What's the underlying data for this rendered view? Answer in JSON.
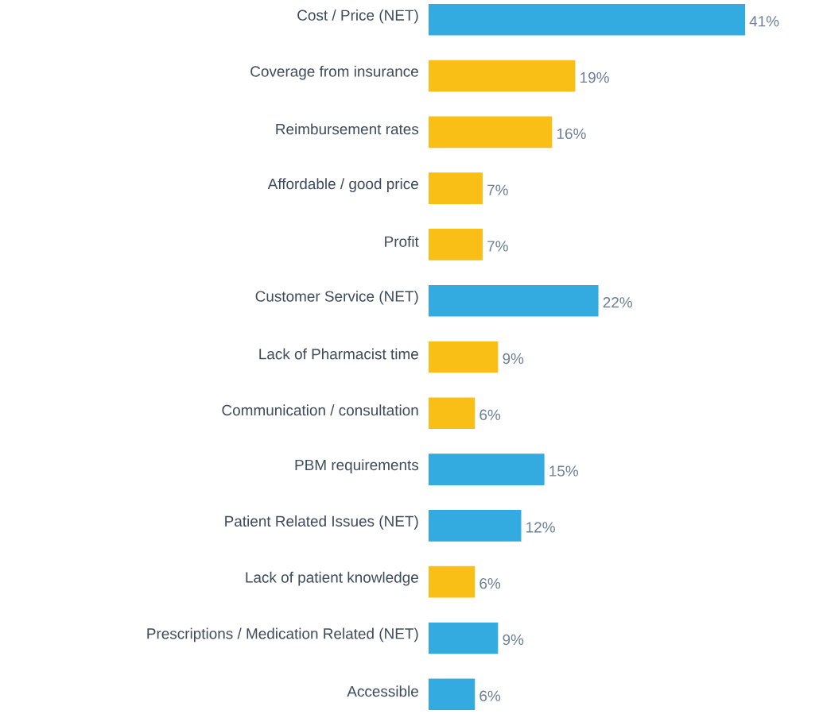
{
  "chart_data": {
    "type": "bar",
    "orientation": "horizontal",
    "categories": [
      "Cost / Price (NET)",
      "Coverage from insurance",
      "Reimbursement rates",
      "Affordable / good price",
      "Profit",
      "Customer Service (NET)",
      "Lack of Pharmacist time",
      "Communication / consultation",
      "PBM requirements",
      "Patient Related Issues (NET)",
      "Lack of patient knowledge",
      "Prescriptions / Medication Related (NET)",
      "Accessible"
    ],
    "values": [
      41,
      19,
      16,
      7,
      7,
      22,
      9,
      6,
      15,
      12,
      6,
      9,
      6
    ],
    "colors": [
      "#33abe1",
      "#f9bf16",
      "#f9bf16",
      "#f9bf16",
      "#f9bf16",
      "#33abe1",
      "#f9bf16",
      "#f9bf16",
      "#33abe1",
      "#33abe1",
      "#f9bf16",
      "#33abe1",
      "#33abe1"
    ],
    "value_labels": [
      "41%",
      "19%",
      "16%",
      "7%",
      "7%",
      "22%",
      "9%",
      "6%",
      "15%",
      "12%",
      "6%",
      "9%",
      "6%"
    ]
  }
}
